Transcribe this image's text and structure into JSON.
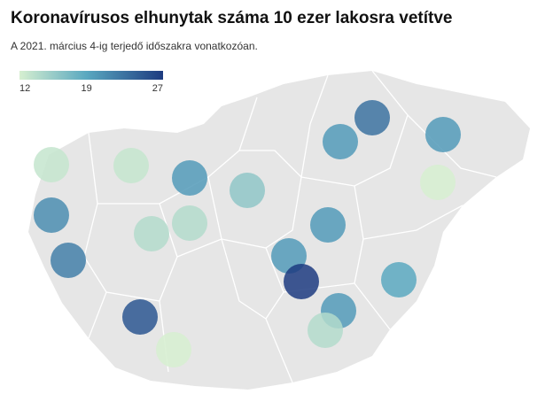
{
  "title": "Koronavírusos elhunytak száma 10 ezer lakosra vetítve",
  "subtitle": "A 2021. március 4-ig terjedő időszakra vonatkozóan.",
  "legend": {
    "ticks": [
      12,
      19,
      27
    ],
    "colors": [
      "#d6efd0",
      "#5aa8c0",
      "#1d3b80"
    ]
  },
  "values": [
    23,
    20,
    20,
    13,
    13,
    20,
    16,
    12,
    21,
    20,
    14,
    14,
    22,
    20,
    27,
    19,
    20,
    25,
    14,
    12
  ]
}
